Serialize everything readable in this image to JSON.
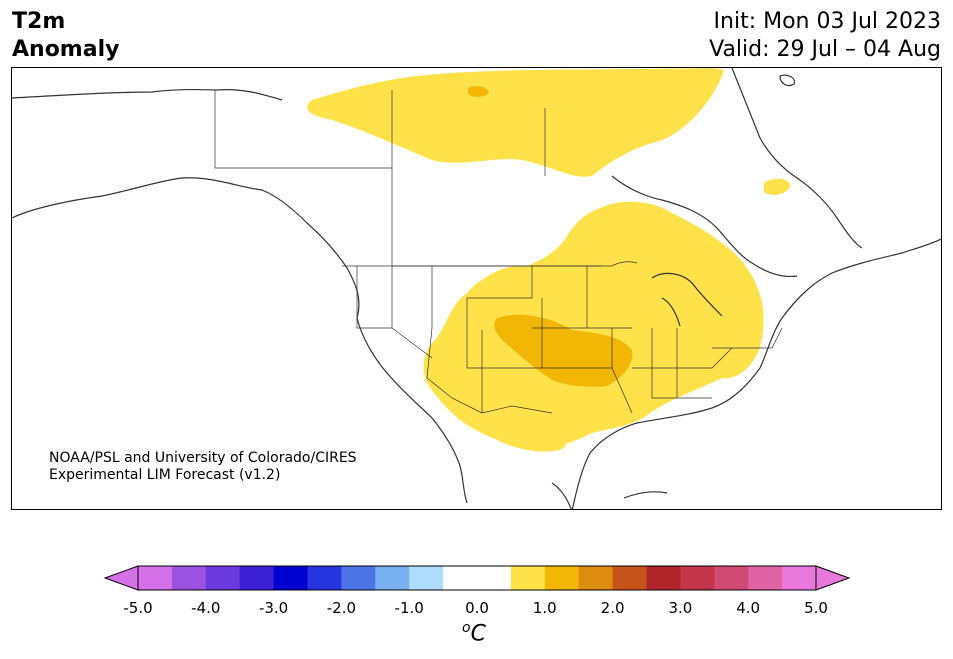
{
  "header": {
    "title_line1": "T2m",
    "title_line2": "Anomaly",
    "init": "Init: Mon 03 Jul 2023",
    "valid": "Valid: 29 Jul – 04 Aug"
  },
  "credit": {
    "line1": "NOAA/PSL and University of Colorado/CIRES",
    "line2": "Experimental LIM Forecast (v1.2)"
  },
  "colorbar": {
    "tick_labels": [
      "-5.0",
      "-4.0",
      "-3.0",
      "-2.0",
      "-1.0",
      "0.0",
      "1.0",
      "2.0",
      "3.0",
      "4.0",
      "5.0"
    ],
    "units_symbol": "o",
    "units_letter": "C",
    "colors": [
      "#d670e8",
      "#9b52e0",
      "#6a3adf",
      "#3a1fd4",
      "#0000d0",
      "#2536df",
      "#4c74e6",
      "#78b0f0",
      "#aedcfb",
      "#ffffff",
      "#ffffff",
      "#ffe14a",
      "#f2b705",
      "#de8c10",
      "#c6541a",
      "#b0252a",
      "#c33548",
      "#d04a74",
      "#de62a4",
      "#e878dc"
    ]
  },
  "map": {
    "region": "North America",
    "colors": {
      "anomaly_0_5_to_1_0": "#ffe14a",
      "anomaly_1_0_to_1_5": "#f2b705",
      "coastline": "#333333",
      "borders": "#333333"
    }
  }
}
